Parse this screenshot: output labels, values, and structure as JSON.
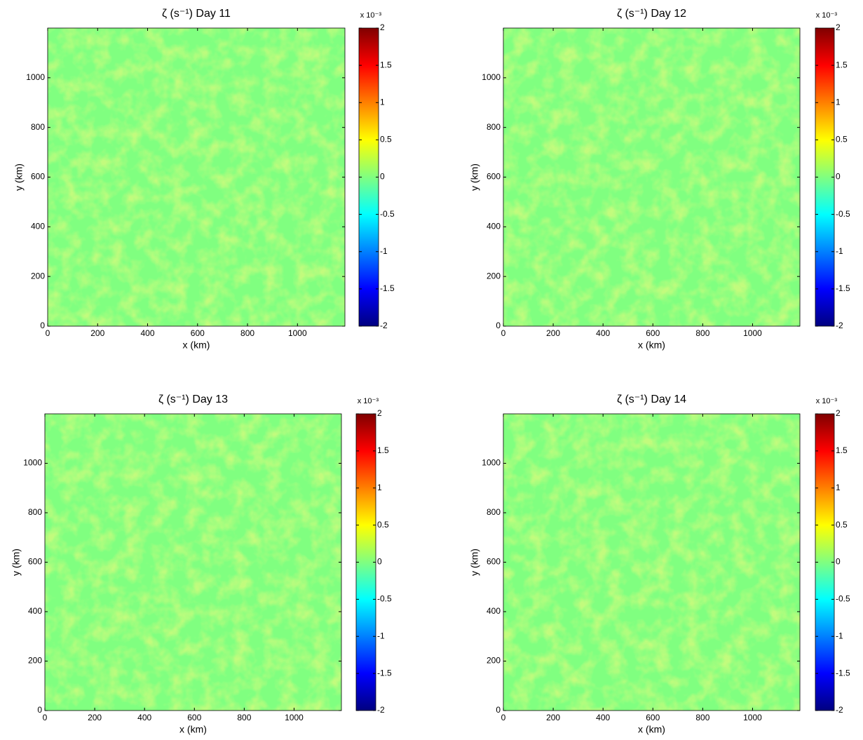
{
  "chart_data": [
    {
      "type": "heatmap",
      "title": "ζ (s⁻¹)  Day 11",
      "x_label": "x (km)",
      "y_label": "y (km)",
      "xlim": [
        0,
        1190
      ],
      "xticks": [
        0,
        200,
        400,
        600,
        800,
        1000
      ],
      "ylim": [
        0,
        1200
      ],
      "yticks": [
        0,
        200,
        400,
        600,
        800,
        1000
      ],
      "clim": [
        -2,
        2
      ],
      "cticks": [
        -2,
        -1.5,
        -1,
        -0.5,
        0,
        0.5,
        1,
        1.5,
        2
      ],
      "colorbar_scale": "x 10⁻³",
      "colormap": [
        "#000080",
        "#0000ff",
        "#0080ff",
        "#00ffff",
        "#80ff80",
        "#ffff00",
        "#ff8000",
        "#ff0000",
        "#800000"
      ]
    },
    {
      "type": "heatmap",
      "title": "ζ (s⁻¹)  Day 12",
      "x_label": "x (km)",
      "y_label": "y (km)",
      "xlim": [
        0,
        1190
      ],
      "xticks": [
        0,
        200,
        400,
        600,
        800,
        1000
      ],
      "ylim": [
        0,
        1200
      ],
      "yticks": [
        0,
        200,
        400,
        600,
        800,
        1000
      ],
      "clim": [
        -2,
        2
      ],
      "cticks": [
        -2,
        -1.5,
        -1,
        -0.5,
        0,
        0.5,
        1,
        1.5,
        2
      ],
      "colorbar_scale": "x 10⁻³",
      "colormap": [
        "#000080",
        "#0000ff",
        "#0080ff",
        "#00ffff",
        "#80ff80",
        "#ffff00",
        "#ff8000",
        "#ff0000",
        "#800000"
      ]
    },
    {
      "type": "heatmap",
      "title": "ζ (s⁻¹)  Day 13",
      "x_label": "x (km)",
      "y_label": "y (km)",
      "xlim": [
        0,
        1190
      ],
      "xticks": [
        0,
        200,
        400,
        600,
        800,
        1000
      ],
      "ylim": [
        0,
        1200
      ],
      "yticks": [
        0,
        200,
        400,
        600,
        800,
        1000
      ],
      "clim": [
        -2,
        2
      ],
      "cticks": [
        -2,
        -1.5,
        -1,
        -0.5,
        0,
        0.5,
        1,
        1.5,
        2
      ],
      "colorbar_scale": "x 10⁻³",
      "colormap": [
        "#000080",
        "#0000ff",
        "#0080ff",
        "#00ffff",
        "#80ff80",
        "#ffff00",
        "#ff8000",
        "#ff0000",
        "#800000"
      ]
    },
    {
      "type": "heatmap",
      "title": "ζ (s⁻¹)  Day 14",
      "x_label": "x (km)",
      "y_label": "y (km)",
      "xlim": [
        0,
        1190
      ],
      "xticks": [
        0,
        200,
        400,
        600,
        800,
        1000
      ],
      "ylim": [
        0,
        1200
      ],
      "yticks": [
        0,
        200,
        400,
        600,
        800,
        1000
      ],
      "clim": [
        -2,
        2
      ],
      "cticks": [
        -2,
        -1.5,
        -1,
        -0.5,
        0,
        0.5,
        1,
        1.5,
        2
      ],
      "colorbar_scale": "x 10⁻³",
      "colormap": [
        "#000080",
        "#0000ff",
        "#0080ff",
        "#00ffff",
        "#80ff80",
        "#ffff00",
        "#ff8000",
        "#ff0000",
        "#800000"
      ]
    }
  ]
}
